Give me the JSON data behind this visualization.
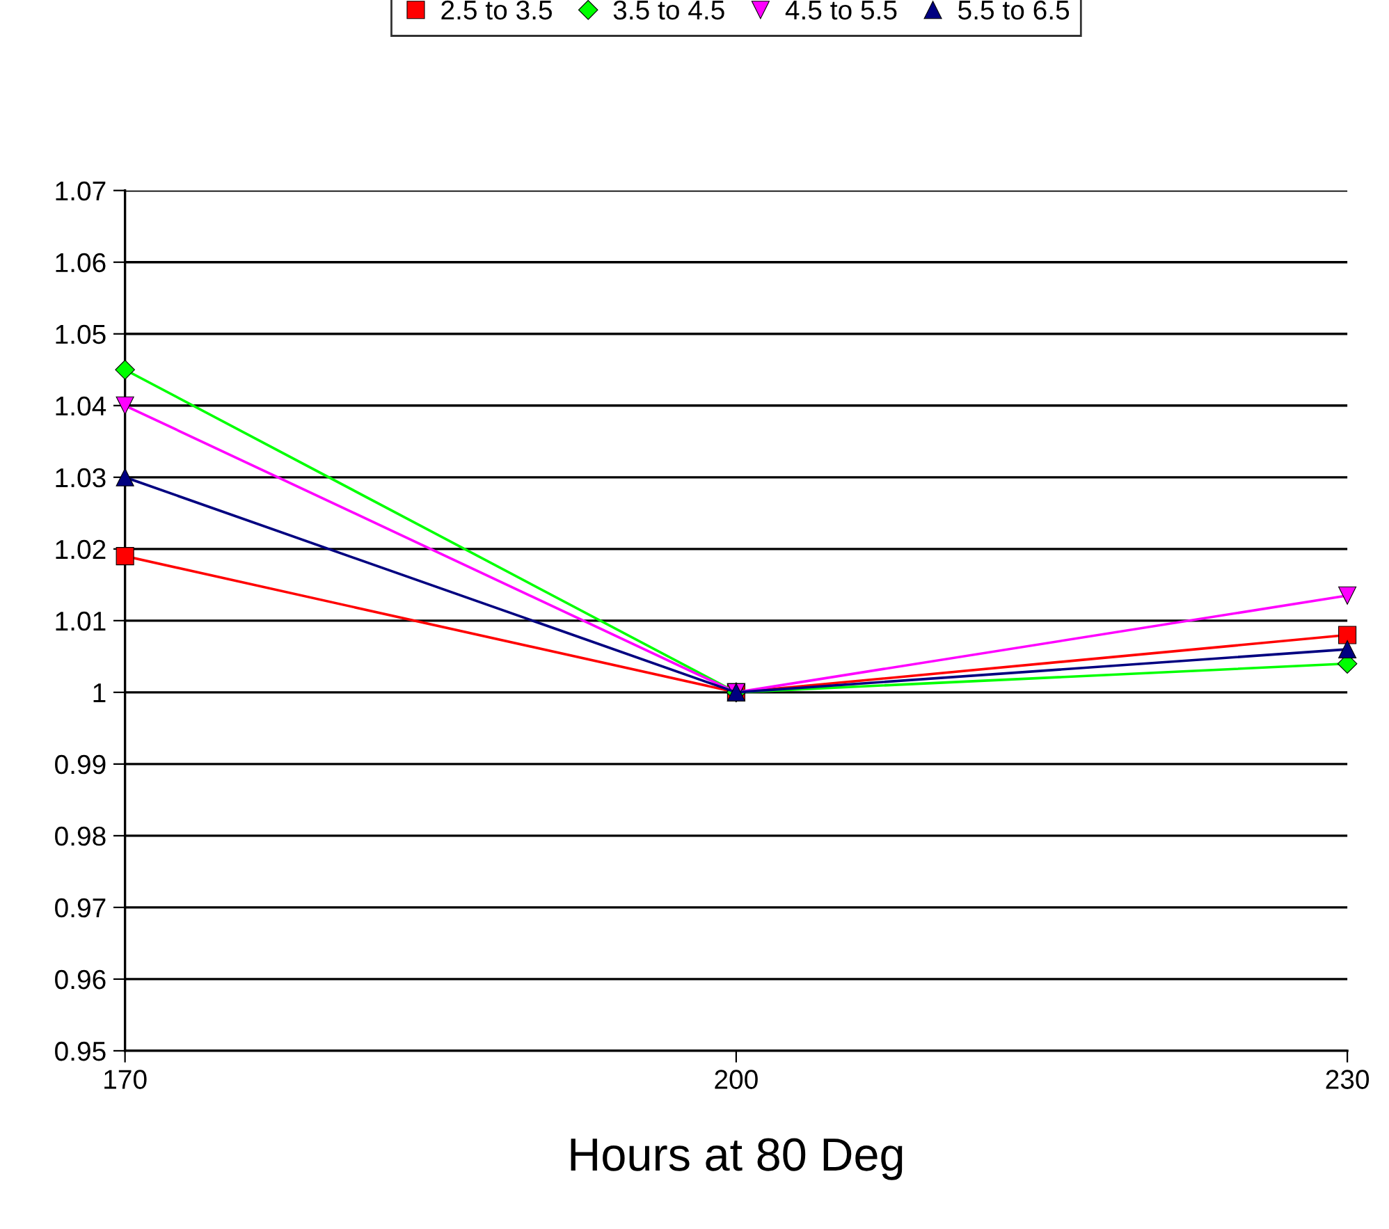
{
  "chart_data": {
    "type": "line",
    "xlabel": "Hours at 80 Deg",
    "x": [
      170,
      200,
      230
    ],
    "series": [
      {
        "name": "2.5 to 3.5",
        "color": "#ff0000",
        "marker": "square",
        "values": [
          1.019,
          1.0,
          1.008
        ]
      },
      {
        "name": "3.5 to 4.5",
        "color": "#00ff00",
        "marker": "diamond",
        "values": [
          1.045,
          1.0,
          1.004
        ]
      },
      {
        "name": "4.5 to 5.5",
        "color": "#ff00ff",
        "marker": "triangle_down",
        "values": [
          1.04,
          1.0,
          1.0135
        ]
      },
      {
        "name": "5.5 to 6.5",
        "color": "#000080",
        "marker": "triangle",
        "values": [
          1.03,
          1.0,
          1.006
        ]
      }
    ],
    "xlim": [
      170,
      230
    ],
    "xticks": [
      170,
      200,
      230
    ],
    "ylim": [
      0.95,
      1.07
    ],
    "yticks": [
      0.95,
      0.96,
      0.97,
      0.98,
      0.99,
      1,
      1.01,
      1.02,
      1.03,
      1.04,
      1.05,
      1.06,
      1.07
    ],
    "grid": "y",
    "legend": "top",
    "line_style": "solid"
  }
}
